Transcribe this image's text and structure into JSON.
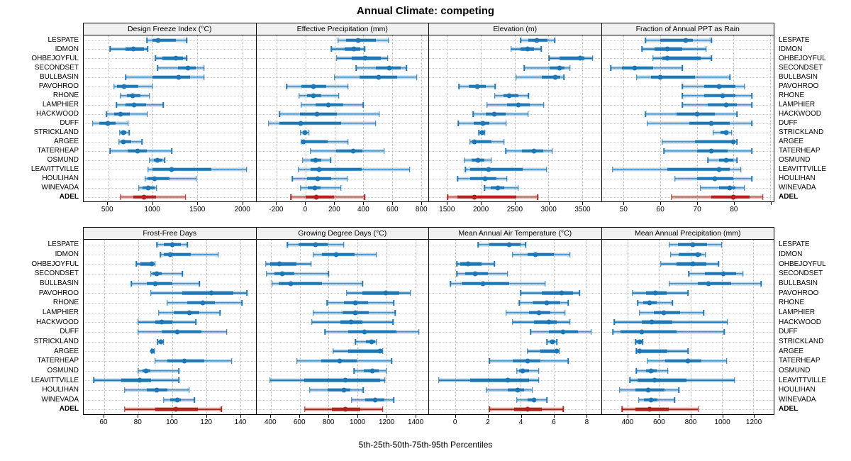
{
  "title": "Annual Climate: competing",
  "caption": "5th-25th-50th-75th-95th Percentiles",
  "highlight_site": "ADEL",
  "colors": {
    "base": "#1f77b4",
    "highlight": "#b2231d",
    "strip_bg": "#f0f0f0",
    "gridline": "#c8c8c8"
  },
  "sites": [
    "LESPATE",
    "IDMON",
    "OHBEJOYFUL",
    "SECONDSET",
    "BULLBASIN",
    "PAVOHROO",
    "RHONE",
    "LAMPHIER",
    "HACKWOOD",
    "DUFF",
    "STRICKLAND",
    "ARGEE",
    "TATERHEAP",
    "OSMUND",
    "LEAVITTVILLE",
    "HOULIHAN",
    "WINEVADA",
    "ADEL"
  ],
  "chart_data": {
    "type": "dotplot-percentile-intervals",
    "grid": [
      2,
      4
    ],
    "percentile_labels": [
      "5th",
      "25th",
      "50th",
      "75th",
      "95th"
    ],
    "row_order_top_to_bottom": true,
    "panels": [
      {
        "key": "design-freeze-index",
        "title": "Design Freeze Index (°C)",
        "xlim": [
          230,
          2150
        ],
        "ticks": [
          500,
          1000,
          1500,
          2000
        ],
        "tick_labels": [
          "500",
          "1000",
          "1500",
          "2000"
        ],
        "series": [
          [
            935,
            1000,
            1065,
            1260,
            1380
          ],
          [
            525,
            700,
            785,
            900,
            945
          ],
          [
            1030,
            1110,
            1260,
            1340,
            1380
          ],
          [
            1055,
            1280,
            1390,
            1480,
            1575
          ],
          [
            700,
            1000,
            1290,
            1420,
            1575
          ],
          [
            570,
            605,
            685,
            840,
            995
          ],
          [
            640,
            715,
            780,
            865,
            965
          ],
          [
            595,
            700,
            790,
            925,
            1120
          ],
          [
            485,
            570,
            645,
            745,
            940
          ],
          [
            330,
            405,
            500,
            585,
            725
          ],
          [
            630,
            645,
            675,
            705,
            740
          ],
          [
            625,
            640,
            670,
            760,
            880
          ],
          [
            525,
            720,
            835,
            935,
            1215
          ],
          [
            965,
            1015,
            1055,
            1105,
            1135
          ],
          [
            950,
            1000,
            1210,
            1655,
            2050
          ],
          [
            915,
            940,
            1020,
            1190,
            1485
          ],
          [
            845,
            885,
            950,
            1025,
            1045
          ],
          [
            640,
            785,
            900,
            1035,
            1370
          ]
        ]
      },
      {
        "key": "effective-precipitation",
        "title": "Effective Precipitation (mm)",
        "xlim": [
          -340,
          850
        ],
        "ticks": [
          -200,
          0,
          200,
          400,
          600,
          800
        ],
        "tick_labels": [
          "-200",
          "0",
          "200",
          "400",
          "600",
          "800"
        ],
        "series": [
          [
            225,
            280,
            365,
            485,
            575
          ],
          [
            180,
            270,
            335,
            380,
            410
          ],
          [
            215,
            320,
            415,
            520,
            570
          ],
          [
            350,
            485,
            580,
            660,
            700
          ],
          [
            200,
            375,
            505,
            635,
            770
          ],
          [
            -130,
            -30,
            55,
            145,
            295
          ],
          [
            -45,
            10,
            55,
            110,
            230
          ],
          [
            -30,
            70,
            160,
            260,
            400
          ],
          [
            -180,
            -40,
            80,
            215,
            510
          ],
          [
            -255,
            -180,
            -35,
            245,
            485
          ],
          [
            -35,
            -15,
            -5,
            10,
            25
          ],
          [
            -30,
            -25,
            -15,
            155,
            295
          ],
          [
            35,
            210,
            330,
            395,
            545
          ],
          [
            -20,
            35,
            70,
            110,
            175
          ],
          [
            -50,
            35,
            95,
            390,
            720
          ],
          [
            -90,
            10,
            85,
            180,
            290
          ],
          [
            -35,
            15,
            65,
            105,
            245
          ],
          [
            -100,
            0,
            75,
            195,
            410
          ]
        ]
      },
      {
        "key": "elevation",
        "title": "Elevation (m)",
        "xlim": [
          1230,
          3780
        ],
        "ticks": [
          1500,
          2000,
          2500,
          3000,
          3500
        ],
        "tick_labels": [
          "1500",
          "2000",
          "2500",
          "3000",
          "3500"
        ],
        "series": [
          [
            2590,
            2705,
            2825,
            2985,
            3095
          ],
          [
            2445,
            2590,
            2690,
            2785,
            2895
          ],
          [
            3010,
            3170,
            3465,
            3530,
            3655
          ],
          [
            2640,
            3015,
            3160,
            3240,
            3320
          ],
          [
            2520,
            2900,
            3105,
            3180,
            3230
          ],
          [
            1675,
            1820,
            1940,
            2070,
            2210
          ],
          [
            2205,
            2335,
            2420,
            2560,
            2705
          ],
          [
            2090,
            2385,
            2550,
            2720,
            2930
          ],
          [
            1885,
            2070,
            2200,
            2365,
            2700
          ],
          [
            1665,
            1895,
            2025,
            2120,
            2375
          ],
          [
            1970,
            1995,
            2015,
            2040,
            2060
          ],
          [
            1835,
            1860,
            1905,
            2155,
            2340
          ],
          [
            2370,
            2610,
            2790,
            2925,
            3055
          ],
          [
            1755,
            1860,
            1955,
            2055,
            2155
          ],
          [
            1770,
            1845,
            2110,
            2615,
            2975
          ],
          [
            1655,
            1845,
            2060,
            2230,
            2385
          ],
          [
            2055,
            2145,
            2245,
            2345,
            2550
          ],
          [
            1505,
            1650,
            1905,
            2520,
            2840
          ]
        ]
      },
      {
        "key": "fraction-ppt-as-rain",
        "title": "Fraction of Annual PPT as Rain",
        "xlim": [
          44,
          91
        ],
        "ticks": [
          50,
          60,
          70,
          80,
          90
        ],
        "tick_labels": [
          "50",
          "60",
          "70",
          "80",
          ""
        ],
        "series": [
          [
            56,
            60,
            67,
            69,
            74
          ],
          [
            55,
            58.5,
            62,
            66,
            72.5
          ],
          [
            58,
            60.5,
            62,
            71,
            74
          ],
          [
            46.5,
            49.5,
            53,
            58,
            66
          ],
          [
            53.5,
            57.5,
            60,
            69.5,
            79
          ],
          [
            66,
            72,
            76,
            80.5,
            83
          ],
          [
            66,
            72,
            77,
            80.5,
            85
          ],
          [
            66,
            73,
            78,
            81,
            85
          ],
          [
            56,
            64.5,
            70,
            75,
            81
          ],
          [
            56.5,
            68,
            74,
            79,
            85
          ],
          [
            74.5,
            76.5,
            78,
            78.5,
            79.5
          ],
          [
            60.5,
            69.5,
            80,
            80.5,
            81
          ],
          [
            61,
            70,
            74,
            78.5,
            85
          ],
          [
            73,
            76,
            78,
            80,
            81
          ],
          [
            47,
            62,
            76,
            79,
            82
          ],
          [
            64,
            70,
            75,
            80,
            85
          ],
          [
            71,
            76,
            79,
            80.5,
            83
          ],
          [
            63,
            74,
            80,
            84.5,
            88
          ]
        ]
      },
      {
        "key": "frost-free-days",
        "title": "Frost-Free Days",
        "xlim": [
          48,
          149
        ],
        "ticks": [
          60,
          80,
          100,
          120,
          140
        ],
        "tick_labels": [
          "60",
          "80",
          "100",
          "120",
          "140"
        ],
        "series": [
          [
            91,
            95,
            100,
            105,
            109
          ],
          [
            93,
            95,
            99,
            111,
            127
          ],
          [
            79,
            81.5,
            88,
            89,
            90
          ],
          [
            87.5,
            88.5,
            91,
            94,
            106
          ],
          [
            76,
            85,
            90,
            100,
            116
          ],
          [
            87.5,
            106,
            123,
            136,
            144
          ],
          [
            97,
            109,
            118,
            125,
            141
          ],
          [
            92,
            101,
            110,
            116,
            128
          ],
          [
            80,
            90,
            94,
            100,
            114
          ],
          [
            80,
            94,
            103,
            117,
            132
          ],
          [
            91.5,
            92.5,
            93.5,
            94.5,
            95
          ],
          [
            87.9,
            88.3,
            88.6,
            89.2,
            89.6
          ],
          [
            90,
            97,
            107,
            119,
            135
          ],
          [
            80,
            82.5,
            84.5,
            87,
            104
          ],
          [
            54,
            70,
            81,
            87.5,
            104
          ],
          [
            72,
            85,
            91,
            97,
            110
          ],
          [
            95,
            99,
            103,
            105,
            113
          ],
          [
            72,
            90,
            102,
            115,
            129
          ]
        ]
      },
      {
        "key": "growing-degree-days",
        "title": "Growing Degree Days (°C)",
        "xlim": [
          300,
          1490
        ],
        "ticks": [
          400,
          600,
          800,
          1000,
          1200,
          1400
        ],
        "tick_labels": [
          "400",
          "600",
          "800",
          "1000",
          "1200",
          "1400"
        ],
        "series": [
          [
            515,
            590,
            710,
            795,
            905
          ],
          [
            695,
            755,
            850,
            980,
            1130
          ],
          [
            365,
            395,
            460,
            575,
            680
          ],
          [
            370,
            425,
            480,
            565,
            800
          ],
          [
            410,
            455,
            540,
            755,
            1035
          ],
          [
            925,
            1035,
            1195,
            1290,
            1365
          ],
          [
            790,
            905,
            985,
            1075,
            1250
          ],
          [
            695,
            895,
            985,
            1080,
            1260
          ],
          [
            685,
            880,
            955,
            1035,
            1245
          ],
          [
            775,
            935,
            1050,
            1270,
            1425
          ],
          [
            985,
            1060,
            1095,
            1120,
            1130
          ],
          [
            830,
            935,
            1155,
            1170,
            1175
          ],
          [
            580,
            750,
            875,
            995,
            1235
          ],
          [
            975,
            1045,
            1100,
            1145,
            1200
          ],
          [
            395,
            630,
            915,
            1155,
            1190
          ],
          [
            670,
            795,
            905,
            950,
            1040
          ],
          [
            960,
            1055,
            1120,
            1185,
            1250
          ],
          [
            635,
            825,
            915,
            1020,
            1175
          ]
        ]
      },
      {
        "key": "mean-annual-air-temperature",
        "title": "Mean Annual Air Temperature (°C)",
        "xlim": [
          -1.6,
          8.9
        ],
        "ticks": [
          0,
          2,
          4,
          6,
          8
        ],
        "tick_labels": [
          "0",
          "2",
          "4",
          "6",
          "8"
        ],
        "series": [
          [
            1.4,
            2.1,
            3.3,
            4,
            4.3
          ],
          [
            3.5,
            4.4,
            4.9,
            6,
            7
          ],
          [
            0.1,
            0.3,
            0.8,
            1.6,
            2.4
          ],
          [
            0.1,
            0.6,
            1.2,
            2,
            3.2
          ],
          [
            -0.3,
            0.4,
            1.7,
            3.3,
            5.5
          ],
          [
            4,
            5.3,
            6.5,
            7.2,
            7.6
          ],
          [
            3.9,
            4.7,
            5.6,
            6.4,
            6.9
          ],
          [
            3.1,
            4.5,
            5.1,
            5.8,
            6.7
          ],
          [
            3.5,
            4.8,
            5.7,
            6.2,
            7
          ],
          [
            4.6,
            5.7,
            6.6,
            7.5,
            8.3
          ],
          [
            5.6,
            5.75,
            5.95,
            6.1,
            6.2
          ],
          [
            4.4,
            5.2,
            6.2,
            6.3,
            6.35
          ],
          [
            2.1,
            3.5,
            4.4,
            5.2,
            6.9
          ],
          [
            3.75,
            3.9,
            4.1,
            4.5,
            5.1
          ],
          [
            -1,
            0.9,
            3.2,
            4.5,
            5.1
          ],
          [
            1.9,
            3.2,
            3.8,
            4.2,
            4.7
          ],
          [
            3.75,
            4.4,
            4.8,
            4.95,
            5.6
          ],
          [
            2.1,
            3.6,
            4.4,
            5.3,
            6.6
          ]
        ]
      },
      {
        "key": "mean-annual-precipitation",
        "title": "Mean Annual Precipitation (mm)",
        "xlim": [
          235,
          1330
        ],
        "ticks": [
          400,
          600,
          800,
          1000,
          1200
        ],
        "tick_labels": [
          "400",
          "600",
          "800",
          "1000",
          "1200"
        ],
        "series": [
          [
            665,
            720,
            815,
            905,
            1000
          ],
          [
            675,
            725,
            845,
            870,
            895
          ],
          [
            610,
            710,
            815,
            900,
            980
          ],
          [
            790,
            890,
            1010,
            1090,
            1135
          ],
          [
            665,
            845,
            915,
            1060,
            1250
          ],
          [
            430,
            515,
            575,
            650,
            785
          ],
          [
            465,
            500,
            540,
            585,
            685
          ],
          [
            475,
            565,
            630,
            735,
            885
          ],
          [
            315,
            490,
            555,
            685,
            1035
          ],
          [
            305,
            355,
            490,
            710,
            1015
          ],
          [
            450,
            455,
            475,
            485,
            495
          ],
          [
            455,
            465,
            475,
            655,
            785
          ],
          [
            525,
            640,
            785,
            870,
            1030
          ],
          [
            455,
            515,
            550,
            585,
            655
          ],
          [
            415,
            465,
            570,
            775,
            1080
          ],
          [
            350,
            450,
            530,
            635,
            725
          ],
          [
            470,
            505,
            550,
            590,
            700
          ],
          [
            365,
            450,
            540,
            660,
            850
          ]
        ]
      }
    ]
  }
}
